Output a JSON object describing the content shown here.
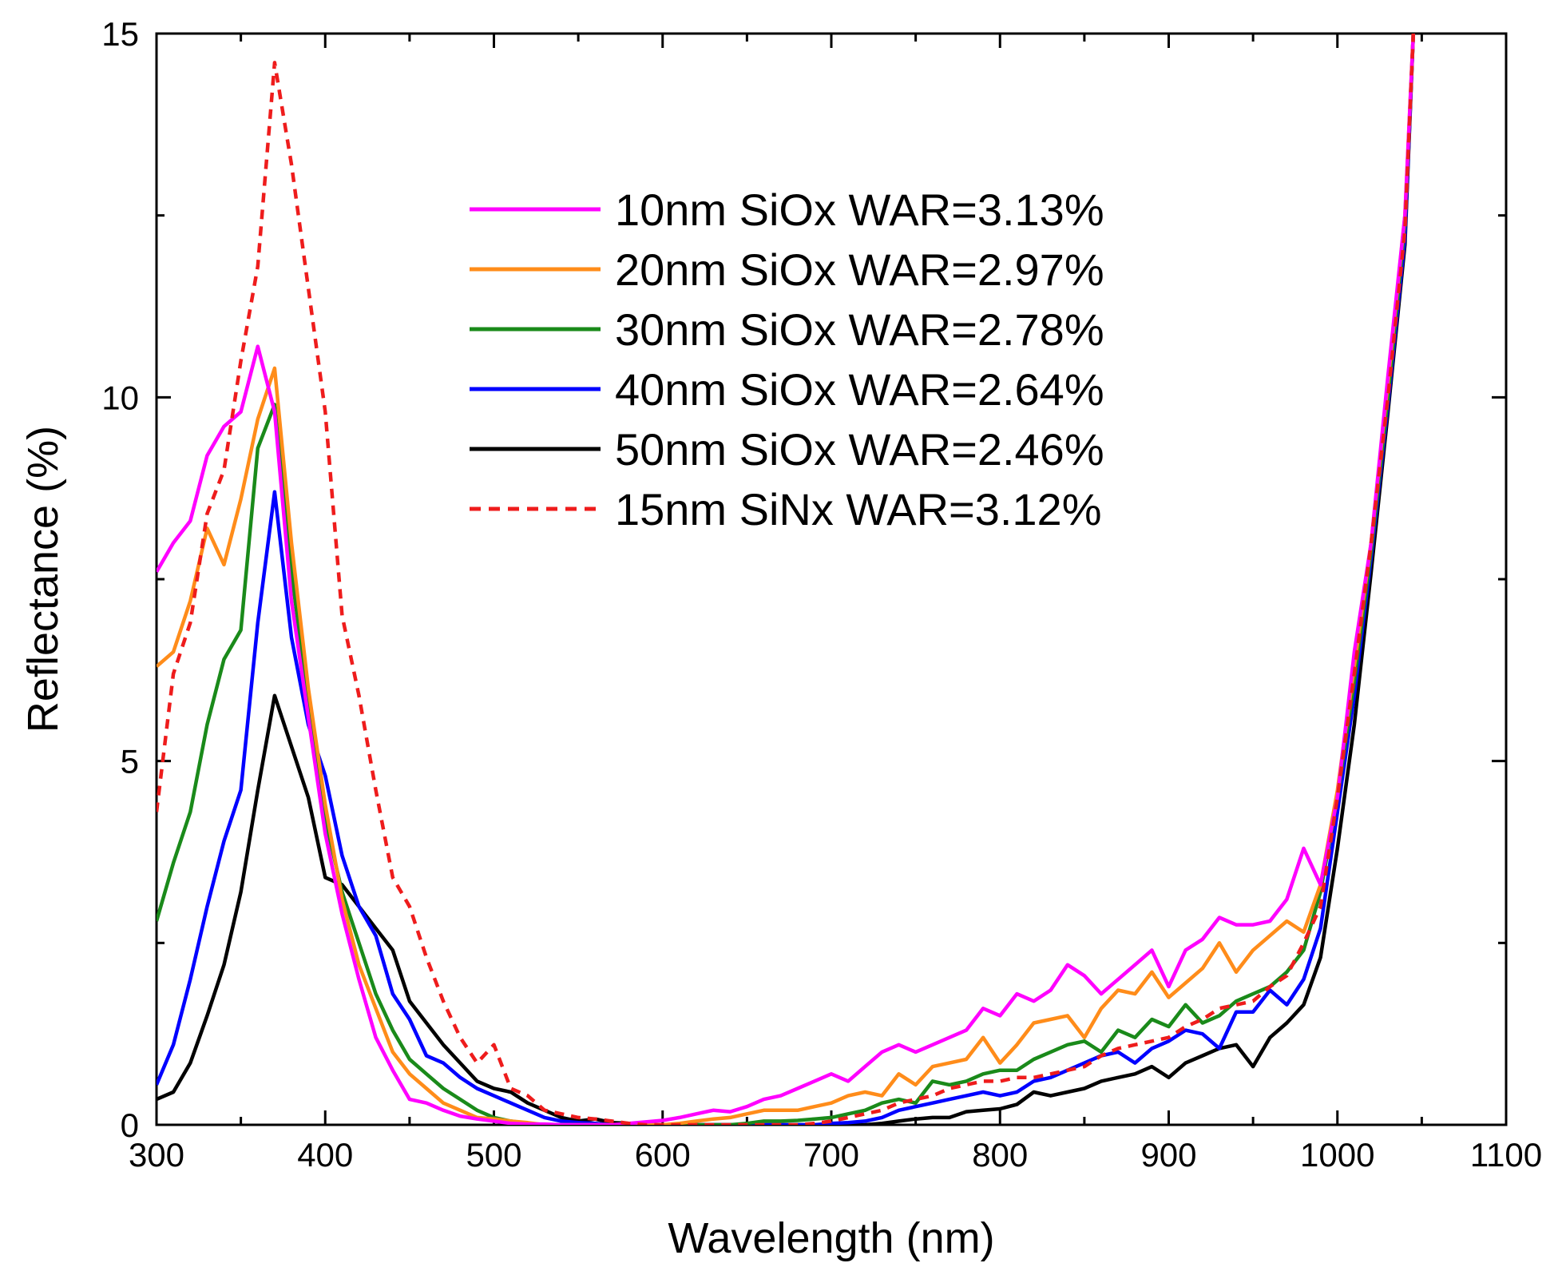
{
  "chart_data": {
    "type": "line",
    "title": "",
    "xlabel": "Wavelength (nm)",
    "ylabel": "Reflectance (%)",
    "xlim": [
      300,
      1100
    ],
    "ylim": [
      0,
      15
    ],
    "xticks": [
      300,
      400,
      500,
      600,
      700,
      800,
      900,
      1000,
      1100
    ],
    "xtick_labels": [
      "300",
      "400",
      "500",
      "600",
      "700",
      "800",
      "900",
      "1000",
      "1100"
    ],
    "yticks": [
      0,
      5,
      10,
      15
    ],
    "ytick_labels": [
      "0",
      "5",
      "10",
      "15"
    ],
    "legend_position": "top-center",
    "grid": false,
    "x": [
      300,
      310,
      320,
      330,
      340,
      350,
      360,
      370,
      380,
      390,
      400,
      410,
      420,
      430,
      440,
      450,
      460,
      470,
      480,
      490,
      500,
      510,
      520,
      530,
      540,
      550,
      560,
      570,
      580,
      590,
      600,
      610,
      620,
      630,
      640,
      650,
      660,
      670,
      680,
      690,
      700,
      710,
      720,
      730,
      740,
      750,
      760,
      770,
      780,
      790,
      800,
      810,
      820,
      830,
      840,
      850,
      860,
      870,
      880,
      890,
      900,
      910,
      920,
      930,
      940,
      950,
      960,
      970,
      980,
      990,
      1000,
      1010,
      1020,
      1030,
      1040,
      1045
    ],
    "series": [
      {
        "name": "10nm SiOx WAR=3.13%",
        "color": "#ff00ff",
        "dash": false,
        "values": [
          7.6,
          8.0,
          8.3,
          9.2,
          9.6,
          9.8,
          10.7,
          9.8,
          7.2,
          5.6,
          4.0,
          2.9,
          2.0,
          1.2,
          0.75,
          0.35,
          0.3,
          0.2,
          0.12,
          0.08,
          0.05,
          0.02,
          0.01,
          0.01,
          0.0,
          0.0,
          0.0,
          0.0,
          0.02,
          0.04,
          0.06,
          0.1,
          0.15,
          0.2,
          0.18,
          0.25,
          0.35,
          0.4,
          0.5,
          0.6,
          0.7,
          0.6,
          0.8,
          1.0,
          1.1,
          1.0,
          1.1,
          1.2,
          1.3,
          1.6,
          1.5,
          1.8,
          1.7,
          1.85,
          2.2,
          2.05,
          1.8,
          2.0,
          2.2,
          2.4,
          1.9,
          2.4,
          2.55,
          2.85,
          2.75,
          2.75,
          2.8,
          3.1,
          3.8,
          3.3,
          4.5,
          6.5,
          8.0,
          10.3,
          12.5,
          15.0
        ]
      },
      {
        "name": "20nm SiOx WAR=2.97%",
        "color": "#ff8c1a",
        "dash": false,
        "values": [
          6.3,
          6.5,
          7.2,
          8.2,
          7.7,
          8.6,
          9.7,
          10.4,
          8.0,
          6.0,
          4.4,
          3.1,
          2.2,
          1.6,
          1.0,
          0.7,
          0.5,
          0.3,
          0.2,
          0.1,
          0.08,
          0.05,
          0.03,
          0.0,
          0.0,
          0.0,
          0.0,
          0.0,
          0.0,
          0.0,
          0.0,
          0.02,
          0.05,
          0.08,
          0.1,
          0.15,
          0.2,
          0.2,
          0.2,
          0.25,
          0.3,
          0.4,
          0.45,
          0.4,
          0.7,
          0.55,
          0.8,
          0.85,
          0.9,
          1.2,
          0.85,
          1.1,
          1.4,
          1.45,
          1.5,
          1.2,
          1.6,
          1.85,
          1.8,
          2.1,
          1.75,
          1.95,
          2.15,
          2.5,
          2.1,
          2.4,
          2.6,
          2.8,
          2.65,
          3.3,
          4.6,
          6.3,
          8.0,
          10.2,
          12.5,
          15.0
        ]
      },
      {
        "name": "30nm SiOx WAR=2.78%",
        "color": "#1a8a1a",
        "dash": false,
        "values": [
          2.8,
          3.6,
          4.3,
          5.5,
          6.4,
          6.8,
          9.3,
          9.9,
          7.6,
          5.8,
          4.2,
          3.2,
          2.5,
          1.8,
          1.3,
          0.9,
          0.7,
          0.5,
          0.35,
          0.2,
          0.1,
          0.05,
          0.02,
          0.0,
          0.0,
          0.0,
          0.0,
          0.0,
          0.0,
          0.0,
          0.0,
          0.0,
          0.0,
          0.0,
          0.0,
          0.02,
          0.05,
          0.05,
          0.06,
          0.08,
          0.1,
          0.15,
          0.2,
          0.3,
          0.35,
          0.3,
          0.6,
          0.55,
          0.6,
          0.7,
          0.75,
          0.75,
          0.9,
          1.0,
          1.1,
          1.15,
          1.0,
          1.3,
          1.2,
          1.45,
          1.35,
          1.65,
          1.4,
          1.5,
          1.7,
          1.8,
          1.9,
          2.1,
          2.4,
          3.2,
          4.5,
          6.1,
          7.9,
          10.0,
          12.4,
          15.0
        ]
      },
      {
        "name": "40nm SiOx WAR=2.64%",
        "color": "#0000ff",
        "dash": false,
        "values": [
          0.55,
          1.1,
          2.0,
          3.0,
          3.9,
          4.6,
          6.9,
          8.7,
          6.7,
          5.5,
          4.8,
          3.7,
          3.0,
          2.6,
          1.8,
          1.45,
          0.95,
          0.85,
          0.65,
          0.5,
          0.4,
          0.3,
          0.2,
          0.1,
          0.05,
          0.03,
          0.02,
          0.0,
          0.0,
          0.0,
          0.0,
          0.0,
          0.0,
          0.0,
          0.0,
          0.0,
          0.0,
          0.0,
          0.0,
          0.0,
          0.02,
          0.03,
          0.05,
          0.1,
          0.2,
          0.25,
          0.3,
          0.35,
          0.4,
          0.45,
          0.4,
          0.45,
          0.6,
          0.65,
          0.75,
          0.85,
          0.95,
          1.0,
          0.85,
          1.05,
          1.15,
          1.3,
          1.25,
          1.05,
          1.55,
          1.55,
          1.85,
          1.65,
          2.0,
          2.7,
          4.3,
          5.9,
          7.8,
          9.9,
          12.2,
          15.0
        ]
      },
      {
        "name": "50nm SiOx WAR=2.46%",
        "color": "#000000",
        "dash": false,
        "values": [
          0.35,
          0.45,
          0.85,
          1.5,
          2.2,
          3.2,
          4.6,
          5.9,
          5.2,
          4.5,
          3.4,
          3.3,
          3.0,
          2.7,
          2.4,
          1.7,
          1.4,
          1.1,
          0.85,
          0.6,
          0.5,
          0.45,
          0.3,
          0.2,
          0.1,
          0.05,
          0.08,
          0.03,
          0.02,
          0.0,
          0.0,
          0.0,
          0.0,
          0.0,
          0.0,
          0.0,
          0.0,
          0.0,
          0.0,
          0.0,
          0.0,
          0.0,
          0.0,
          0.02,
          0.05,
          0.08,
          0.1,
          0.1,
          0.18,
          0.2,
          0.22,
          0.28,
          0.45,
          0.4,
          0.45,
          0.5,
          0.6,
          0.65,
          0.7,
          0.8,
          0.65,
          0.85,
          0.95,
          1.05,
          1.1,
          0.8,
          1.2,
          1.4,
          1.65,
          2.3,
          3.8,
          5.5,
          7.6,
          9.8,
          12.1,
          15.0
        ]
      },
      {
        "name": "15nm SiNx WAR=3.12%",
        "color": "#ee1c1c",
        "dash": true,
        "values": [
          4.3,
          6.2,
          6.9,
          8.4,
          9.0,
          10.5,
          11.8,
          14.6,
          13.2,
          11.5,
          9.8,
          7.0,
          5.9,
          4.6,
          3.4,
          3.0,
          2.3,
          1.7,
          1.2,
          0.85,
          1.1,
          0.5,
          0.4,
          0.2,
          0.15,
          0.1,
          0.08,
          0.05,
          0.02,
          0.0,
          0.0,
          0.0,
          0.0,
          0.0,
          0.0,
          0.0,
          0.0,
          0.0,
          0.0,
          0.02,
          0.05,
          0.1,
          0.15,
          0.2,
          0.3,
          0.35,
          0.4,
          0.5,
          0.55,
          0.6,
          0.6,
          0.65,
          0.65,
          0.7,
          0.75,
          0.8,
          0.95,
          1.05,
          1.1,
          1.15,
          1.2,
          1.35,
          1.45,
          1.6,
          1.65,
          1.7,
          1.9,
          2.05,
          2.5,
          3.0,
          4.5,
          6.2,
          8.0,
          10.0,
          12.3,
          15.0
        ]
      }
    ]
  }
}
